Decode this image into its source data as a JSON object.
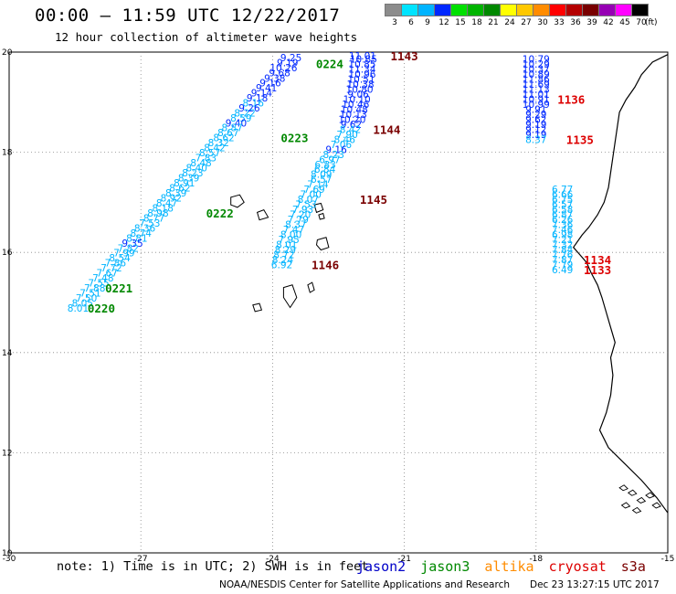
{
  "header": {
    "title": "00:00 – 11:59 UTC 12/22/2017",
    "subtitle": "12 hour collection of altimeter wave heights"
  },
  "color_scale": {
    "unit": "(ft)",
    "labels": [
      "3",
      "6",
      "9",
      "12",
      "15",
      "18",
      "21",
      "24",
      "27",
      "30",
      "33",
      "36",
      "39",
      "42",
      "45",
      "70"
    ],
    "colors": [
      "#8c8c8c",
      "#00e4ff",
      "#00b4ff",
      "#0028ff",
      "#00e000",
      "#00b400",
      "#008800",
      "#ffff00",
      "#ffc800",
      "#ff8c00",
      "#ff0000",
      "#b40000",
      "#780000",
      "#9600b4",
      "#ff00ff",
      "#000000"
    ]
  },
  "axes": {
    "lon_labels": [
      "-30",
      "-27",
      "-24",
      "-21",
      "-18",
      "-15"
    ],
    "lat_labels": [
      "20",
      "18",
      "16",
      "14",
      "12",
      "10"
    ]
  },
  "colors": {
    "jason2": "#0000c8",
    "jason3": "#008800",
    "altika": "#ff8c00",
    "cryosat": "#dd0000",
    "s3a": "#7a0000",
    "low_wave": "#00b4ff",
    "mid_wave": "#0028ff"
  },
  "tracks": [
    {
      "id": "pass-0220-0224",
      "points": [
        {
          "lon": -23.58,
          "lat": 19.89,
          "v": "9.25"
        },
        {
          "lon": -23.66,
          "lat": 19.79,
          "v": "9.19"
        },
        {
          "lon": -23.75,
          "lat": 19.69,
          "v": "10.26"
        },
        {
          "lon": -23.84,
          "lat": 19.59,
          "v": "9.68"
        },
        {
          "lon": -23.95,
          "lat": 19.48,
          "v": "9.38"
        },
        {
          "lon": -24.05,
          "lat": 19.39,
          "v": "9.16"
        },
        {
          "lon": -24.14,
          "lat": 19.29,
          "v": "9.41"
        },
        {
          "lon": -24.25,
          "lat": 19.19,
          "v": "9.14"
        },
        {
          "lon": -24.35,
          "lat": 19.09,
          "v": "9.18"
        },
        {
          "lon": -24.44,
          "lat": 18.99,
          "v": "8.16"
        },
        {
          "lon": -24.53,
          "lat": 18.89,
          "v": "9.26"
        },
        {
          "lon": -24.63,
          "lat": 18.79,
          "v": "8.22"
        },
        {
          "lon": -24.72,
          "lat": 18.69,
          "v": "8.59"
        },
        {
          "lon": -24.83,
          "lat": 18.59,
          "v": "9.40"
        },
        {
          "lon": -24.92,
          "lat": 18.49,
          "v": "8.87"
        },
        {
          "lon": -25.01,
          "lat": 18.39,
          "v": "8.67"
        },
        {
          "lon": -25.11,
          "lat": 18.29,
          "v": "8.62"
        },
        {
          "lon": -25.23,
          "lat": 18.19,
          "v": "8.32"
        },
        {
          "lon": -25.32,
          "lat": 18.09,
          "v": "8.42"
        },
        {
          "lon": -25.43,
          "lat": 17.99,
          "v": "8.57"
        },
        {
          "lon": -25.52,
          "lat": 17.89,
          "v": "7.83"
        },
        {
          "lon": -25.63,
          "lat": 17.79,
          "v": "8.48"
        },
        {
          "lon": -25.73,
          "lat": 17.69,
          "v": "8.40"
        },
        {
          "lon": -25.82,
          "lat": 17.59,
          "v": "8.23"
        },
        {
          "lon": -25.91,
          "lat": 17.49,
          "v": "8.39"
        },
        {
          "lon": -26.01,
          "lat": 17.39,
          "v": "8.91"
        },
        {
          "lon": -26.11,
          "lat": 17.29,
          "v": "8.62"
        },
        {
          "lon": -26.2,
          "lat": 17.19,
          "v": "8.39"
        },
        {
          "lon": -26.31,
          "lat": 17.09,
          "v": "8.92"
        },
        {
          "lon": -26.41,
          "lat": 16.99,
          "v": "8.47"
        },
        {
          "lon": -26.5,
          "lat": 16.89,
          "v": "8.18"
        },
        {
          "lon": -26.61,
          "lat": 16.79,
          "v": "8.98"
        },
        {
          "lon": -26.7,
          "lat": 16.69,
          "v": "8.77"
        },
        {
          "lon": -26.8,
          "lat": 16.59,
          "v": "7.53"
        },
        {
          "lon": -26.91,
          "lat": 16.49,
          "v": "8.36"
        },
        {
          "lon": -27.0,
          "lat": 16.39,
          "v": "8.74"
        },
        {
          "lon": -27.09,
          "lat": 16.29,
          "v": "8.81"
        },
        {
          "lon": -27.19,
          "lat": 16.19,
          "v": "9.35"
        },
        {
          "lon": -27.29,
          "lat": 16.09,
          "v": "7.82"
        },
        {
          "lon": -27.38,
          "lat": 15.99,
          "v": "7.99"
        },
        {
          "lon": -27.48,
          "lat": 15.89,
          "v": "8.54"
        },
        {
          "lon": -27.58,
          "lat": 15.79,
          "v": "7.86"
        },
        {
          "lon": -27.67,
          "lat": 15.69,
          "v": "7.72"
        },
        {
          "lon": -27.77,
          "lat": 15.59,
          "v": "7.67"
        },
        {
          "lon": -27.86,
          "lat": 15.49,
          "v": "7.48"
        },
        {
          "lon": -27.96,
          "lat": 15.39,
          "v": "7.55"
        },
        {
          "lon": -28.05,
          "lat": 15.29,
          "v": "7.88"
        },
        {
          "lon": -28.15,
          "lat": 15.19,
          "v": "7.51"
        },
        {
          "lon": -28.24,
          "lat": 15.09,
          "v": "7.50"
        },
        {
          "lon": -28.33,
          "lat": 14.99,
          "v": "8.05"
        },
        {
          "lon": -28.43,
          "lat": 14.89,
          "v": "8.01"
        }
      ],
      "labels": [
        {
          "lon": -22.7,
          "lat": 19.77,
          "text": "0224",
          "sat": "jason3"
        },
        {
          "lon": -23.5,
          "lat": 18.29,
          "text": "0223",
          "sat": "jason3"
        },
        {
          "lon": -25.2,
          "lat": 16.79,
          "text": "0222",
          "sat": "jason3"
        },
        {
          "lon": -27.5,
          "lat": 15.29,
          "text": "0221",
          "sat": "jason3"
        },
        {
          "lon": -27.9,
          "lat": 14.89,
          "text": "0220",
          "sat": "jason3"
        }
      ]
    },
    {
      "id": "pass-1143-1146",
      "points": [
        {
          "lon": -21.95,
          "lat": 19.93,
          "v": "11.01"
        },
        {
          "lon": -21.93,
          "lat": 19.86,
          "v": "10.85"
        },
        {
          "lon": -21.96,
          "lat": 19.76,
          "v": "10.85"
        },
        {
          "lon": -21.96,
          "lat": 19.66,
          "v": "11.34"
        },
        {
          "lon": -21.96,
          "lat": 19.56,
          "v": "10.96"
        },
        {
          "lon": -21.98,
          "lat": 19.46,
          "v": "10.51"
        },
        {
          "lon": -22.0,
          "lat": 19.36,
          "v": "10.38"
        },
        {
          "lon": -22.02,
          "lat": 19.26,
          "v": "10.80"
        },
        {
          "lon": -22.05,
          "lat": 19.16,
          "v": "9.06"
        },
        {
          "lon": -22.08,
          "lat": 19.06,
          "v": "10.10"
        },
        {
          "lon": -22.11,
          "lat": 18.96,
          "v": "10.46"
        },
        {
          "lon": -22.14,
          "lat": 18.86,
          "v": "10.48"
        },
        {
          "lon": -22.16,
          "lat": 18.76,
          "v": "10.13"
        },
        {
          "lon": -22.19,
          "lat": 18.66,
          "v": "10.20"
        },
        {
          "lon": -22.21,
          "lat": 18.56,
          "v": "9.62"
        },
        {
          "lon": -22.23,
          "lat": 18.46,
          "v": "8.42"
        },
        {
          "lon": -22.3,
          "lat": 18.36,
          "v": "7.90"
        },
        {
          "lon": -22.36,
          "lat": 18.26,
          "v": "8.46"
        },
        {
          "lon": -22.44,
          "lat": 18.16,
          "v": "7.06"
        },
        {
          "lon": -22.55,
          "lat": 18.06,
          "v": "9.16"
        },
        {
          "lon": -22.61,
          "lat": 17.96,
          "v": "8.23"
        },
        {
          "lon": -22.7,
          "lat": 17.86,
          "v": "6.97"
        },
        {
          "lon": -22.8,
          "lat": 17.76,
          "v": "6.83"
        },
        {
          "lon": -22.81,
          "lat": 17.66,
          "v": "6.84"
        },
        {
          "lon": -22.89,
          "lat": 17.56,
          "v": "8.09"
        },
        {
          "lon": -22.89,
          "lat": 17.46,
          "v": "6.57"
        },
        {
          "lon": -22.97,
          "lat": 17.36,
          "v": "7.14"
        },
        {
          "lon": -23.05,
          "lat": 17.26,
          "v": "7.69"
        },
        {
          "lon": -23.13,
          "lat": 17.16,
          "v": "7.00"
        },
        {
          "lon": -23.19,
          "lat": 17.06,
          "v": "8.07"
        },
        {
          "lon": -23.24,
          "lat": 16.96,
          "v": "7.53"
        },
        {
          "lon": -23.31,
          "lat": 16.86,
          "v": "7.93"
        },
        {
          "lon": -23.37,
          "lat": 16.76,
          "v": "7.20"
        },
        {
          "lon": -23.42,
          "lat": 16.66,
          "v": "7.79"
        },
        {
          "lon": -23.47,
          "lat": 16.56,
          "v": "8.37"
        },
        {
          "lon": -23.52,
          "lat": 16.46,
          "v": "7.47"
        },
        {
          "lon": -23.58,
          "lat": 16.36,
          "v": "8.00"
        },
        {
          "lon": -23.63,
          "lat": 16.26,
          "v": "7.95"
        },
        {
          "lon": -23.68,
          "lat": 16.16,
          "v": "8.01"
        },
        {
          "lon": -23.71,
          "lat": 16.06,
          "v": "8.29"
        },
        {
          "lon": -23.74,
          "lat": 15.96,
          "v": "8.72"
        },
        {
          "lon": -23.77,
          "lat": 15.86,
          "v": "8.24"
        },
        {
          "lon": -23.79,
          "lat": 15.76,
          "v": "6.92"
        }
      ],
      "labels": [
        {
          "lon": -21.0,
          "lat": 19.93,
          "text": "1143",
          "sat": "s3a"
        },
        {
          "lon": -21.4,
          "lat": 18.46,
          "text": "1144",
          "sat": "s3a"
        },
        {
          "lon": -21.7,
          "lat": 17.06,
          "text": "1145",
          "sat": "s3a"
        },
        {
          "lon": -22.8,
          "lat": 15.76,
          "text": "1146",
          "sat": "s3a"
        }
      ]
    },
    {
      "id": "pass-1133-1136",
      "points": [
        {
          "lon": -18.0,
          "lat": 19.86,
          "v": "10.79"
        },
        {
          "lon": -18.0,
          "lat": 19.76,
          "v": "10.29"
        },
        {
          "lon": -18.0,
          "lat": 19.66,
          "v": "10.37"
        },
        {
          "lon": -18.0,
          "lat": 19.56,
          "v": "10.89"
        },
        {
          "lon": -18.0,
          "lat": 19.46,
          "v": "11.86"
        },
        {
          "lon": -18.0,
          "lat": 19.36,
          "v": "11.69"
        },
        {
          "lon": -18.0,
          "lat": 19.26,
          "v": "11.13"
        },
        {
          "lon": -18.0,
          "lat": 19.16,
          "v": "11.01"
        },
        {
          "lon": -18.0,
          "lat": 19.06,
          "v": "10.91"
        },
        {
          "lon": -18.0,
          "lat": 18.96,
          "v": "10.99"
        },
        {
          "lon": -18.0,
          "lat": 18.86,
          "v": "9.91"
        },
        {
          "lon": -18.0,
          "lat": 18.76,
          "v": "9.29"
        },
        {
          "lon": -18.0,
          "lat": 18.66,
          "v": "9.62"
        },
        {
          "lon": -18.0,
          "lat": 18.56,
          "v": "9.19"
        },
        {
          "lon": -18.0,
          "lat": 18.46,
          "v": "9.12"
        },
        {
          "lon": -18.0,
          "lat": 18.36,
          "v": "9.19"
        },
        {
          "lon": -18.0,
          "lat": 18.26,
          "v": "8.37"
        },
        {
          "lon": -17.4,
          "lat": 17.26,
          "v": "6.77"
        },
        {
          "lon": -17.4,
          "lat": 17.16,
          "v": "6.66"
        },
        {
          "lon": -17.4,
          "lat": 17.06,
          "v": "6.75"
        },
        {
          "lon": -17.4,
          "lat": 16.96,
          "v": "6.57"
        },
        {
          "lon": -17.4,
          "lat": 16.86,
          "v": "6.58"
        },
        {
          "lon": -17.4,
          "lat": 16.76,
          "v": "6.87"
        },
        {
          "lon": -17.4,
          "lat": 16.66,
          "v": "6.26"
        },
        {
          "lon": -17.4,
          "lat": 16.56,
          "v": "7.36"
        },
        {
          "lon": -17.4,
          "lat": 16.46,
          "v": "7.46"
        },
        {
          "lon": -17.4,
          "lat": 16.36,
          "v": "6.98"
        },
        {
          "lon": -17.4,
          "lat": 16.26,
          "v": "7.21"
        },
        {
          "lon": -17.4,
          "lat": 16.16,
          "v": "7.32"
        },
        {
          "lon": -17.4,
          "lat": 16.06,
          "v": "7.84"
        },
        {
          "lon": -17.4,
          "lat": 15.96,
          "v": "7.76"
        },
        {
          "lon": -17.4,
          "lat": 15.86,
          "v": "7.87"
        },
        {
          "lon": -17.4,
          "lat": 15.76,
          "v": "7.79"
        },
        {
          "lon": -17.4,
          "lat": 15.66,
          "v": "6.49"
        }
      ],
      "labels": [
        {
          "lon": -17.2,
          "lat": 19.06,
          "text": "1136",
          "sat": "cryosat"
        },
        {
          "lon": -17.0,
          "lat": 18.26,
          "text": "1135",
          "sat": "cryosat"
        },
        {
          "lon": -16.6,
          "lat": 15.86,
          "text": "1134",
          "sat": "cryosat"
        },
        {
          "lon": -16.6,
          "lat": 15.66,
          "text": "1133",
          "sat": "cryosat"
        }
      ]
    }
  ],
  "footer": {
    "note": "note: 1) Time is in UTC; 2) SWH is in feet",
    "legend": [
      {
        "name": "jason2",
        "color": "#0000c8"
      },
      {
        "name": "jason3",
        "color": "#008800"
      },
      {
        "name": "altika",
        "color": "#ff8c00"
      },
      {
        "name": "cryosat",
        "color": "#dd0000"
      },
      {
        "name": "s3a",
        "color": "#7a0000"
      }
    ],
    "credit": "NOAA/NESDIS Center for Satellite Applications and Research",
    "generated": "Dec 23 13:27:15 UTC 2017"
  }
}
